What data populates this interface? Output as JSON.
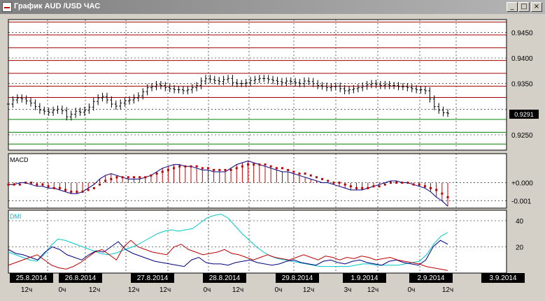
{
  "window": {
    "title": "График AUD /USD  ЧАС",
    "buttons": {
      "minimize": "_",
      "maximize": "□",
      "close": "×"
    }
  },
  "chart_data": [
    {
      "type": "candlestick",
      "ylim": [
        0.922,
        0.9475
      ],
      "yticks": [
        "0.9450",
        "0.9400",
        "0.9350",
        "0.9250"
      ],
      "current_price": "0.9291",
      "resistance_levels": [
        0.947,
        0.9445,
        0.942,
        0.9395,
        0.937,
        0.9345,
        0.9323
      ],
      "support_levels": [
        0.928,
        0.9255,
        0.9232
      ],
      "series": [
        {
          "name": "close",
          "values": [
            0.931,
            0.9318,
            0.9322,
            0.932,
            0.9316,
            0.9312,
            0.9305,
            0.9298,
            0.9296,
            0.9294,
            0.9298,
            0.93,
            0.9297,
            0.9285,
            0.929,
            0.9296,
            0.9294,
            0.9298,
            0.9304,
            0.9315,
            0.9322,
            0.9325,
            0.9318,
            0.931,
            0.9306,
            0.9312,
            0.9316,
            0.9318,
            0.9322,
            0.9326,
            0.9334,
            0.9342,
            0.9344,
            0.9348,
            0.9346,
            0.9342,
            0.934,
            0.9338,
            0.9338,
            0.9336,
            0.9338,
            0.9342,
            0.9346,
            0.9355,
            0.936,
            0.9358,
            0.9356,
            0.9354,
            0.9358,
            0.936,
            0.9352,
            0.935,
            0.935,
            0.9352,
            0.9356,
            0.9358,
            0.936,
            0.936,
            0.9358,
            0.9356,
            0.9354,
            0.9352,
            0.9355,
            0.9354,
            0.9352,
            0.935,
            0.9355,
            0.9354,
            0.935,
            0.9346,
            0.9345,
            0.9342,
            0.9344,
            0.9345,
            0.934,
            0.9336,
            0.9338,
            0.934,
            0.9342,
            0.9345,
            0.9348,
            0.935,
            0.9348,
            0.9346,
            0.9348,
            0.9346,
            0.9346,
            0.9344,
            0.9344,
            0.9342,
            0.934,
            0.9338,
            0.9338,
            0.9336,
            0.932,
            0.9305,
            0.9298,
            0.9293,
            0.9292
          ]
        }
      ]
    },
    {
      "type": "line",
      "title": "MACD",
      "ylim": [
        -0.0014,
        0.0016
      ],
      "yticks": [
        "+0.000",
        "-0.001"
      ],
      "series": [
        {
          "name": "MACD",
          "values": [
            -0.0001,
            -0.0001,
            0.0,
            0.0,
            -0.0001,
            -0.0002,
            -0.0002,
            -0.0003,
            -0.0003,
            -0.0004,
            -0.0005,
            -0.0006,
            -0.0006,
            -0.0005,
            -0.0003,
            -0.0001,
            0.0002,
            0.0004,
            0.0005,
            0.0004,
            0.0003,
            0.0002,
            0.0002,
            0.0002,
            0.0003,
            0.0004,
            0.0006,
            0.0008,
            0.0009,
            0.001,
            0.001,
            0.0009,
            0.0009,
            0.0008,
            0.0007,
            0.0007,
            0.0006,
            0.0006,
            0.0006,
            0.0008,
            0.001,
            0.0011,
            0.0012,
            0.0011,
            0.001,
            0.0009,
            0.0008,
            0.0007,
            0.0006,
            0.0006,
            0.0005,
            0.0004,
            0.0003,
            0.0002,
            0.0001,
            0.0,
            0.0,
            -0.0001,
            -0.0002,
            -0.0003,
            -0.0004,
            -0.0004,
            -0.0004,
            -0.0003,
            -0.0002,
            -0.0001,
            0.0,
            0.0001,
            0.0001,
            0.0,
            0.0,
            -0.0001,
            -0.0002,
            -0.0003,
            -0.0005,
            -0.0008,
            -0.001,
            -0.0013
          ]
        },
        {
          "name": "signal",
          "values": [
            -0.0001,
            -0.0001,
            -0.0001,
            0.0,
            0.0,
            -0.0001,
            -0.0001,
            -0.0002,
            -0.0003,
            -0.0003,
            -0.0004,
            -0.0005,
            -0.0005,
            -0.0005,
            -0.0004,
            -0.0003,
            -0.0001,
            0.0001,
            0.0002,
            0.0003,
            0.0003,
            0.0003,
            0.0003,
            0.0003,
            0.0003,
            0.0004,
            0.0005,
            0.0006,
            0.0007,
            0.0008,
            0.0009,
            0.0009,
            0.0009,
            0.0009,
            0.0008,
            0.0008,
            0.0007,
            0.0007,
            0.0007,
            0.0007,
            0.0008,
            0.0009,
            0.001,
            0.001,
            0.001,
            0.001,
            0.0009,
            0.0008,
            0.0008,
            0.0007,
            0.0006,
            0.0005,
            0.0005,
            0.0004,
            0.0003,
            0.0002,
            0.0001,
            0.0,
            0.0,
            -0.0001,
            -0.0002,
            -0.0003,
            -0.0003,
            -0.0003,
            -0.0002,
            -0.0002,
            -0.0001,
            0.0,
            0.0,
            0.0,
            0.0,
            -0.0001,
            -0.0001,
            -0.0002,
            -0.0003,
            -0.0004,
            -0.0006,
            -0.0008
          ]
        }
      ]
    },
    {
      "type": "line",
      "title": "DMI",
      "ylim": [
        0,
        48
      ],
      "yticks": [
        "40",
        "20"
      ],
      "series": [
        {
          "name": "ADX",
          "values": [
            16,
            14,
            12,
            10,
            9,
            14,
            21,
            26,
            25,
            23,
            21,
            19,
            17,
            15,
            14,
            15,
            17,
            19,
            21,
            24,
            27,
            30,
            32,
            33,
            32,
            33,
            34,
            38,
            42,
            44,
            45,
            42,
            36,
            30,
            25,
            20,
            16,
            13,
            11,
            10,
            9,
            8,
            7,
            6,
            5,
            5,
            5,
            5,
            5,
            6,
            7,
            7,
            6,
            6,
            6,
            6,
            7,
            8,
            9,
            14,
            22,
            28,
            31
          ]
        },
        {
          "name": "+DI",
          "values": [
            18,
            15,
            14,
            12,
            10,
            16,
            20,
            18,
            14,
            12,
            10,
            14,
            17,
            16,
            20,
            24,
            18,
            15,
            13,
            11,
            9,
            8,
            7,
            6,
            5,
            10,
            12,
            8,
            7,
            7,
            6,
            8,
            9,
            10,
            8,
            7,
            6,
            7,
            9,
            10,
            8,
            7,
            6,
            9,
            10,
            8,
            7,
            9,
            10,
            8,
            7,
            6,
            9,
            10,
            8,
            7,
            6,
            10,
            20,
            25,
            22
          ]
        },
        {
          "name": "-DI",
          "values": [
            6,
            8,
            10,
            12,
            14,
            10,
            6,
            4,
            3,
            5,
            8,
            12,
            16,
            18,
            14,
            10,
            20,
            25,
            20,
            18,
            16,
            15,
            14,
            20,
            22,
            18,
            16,
            14,
            15,
            16,
            18,
            15,
            14,
            12,
            10,
            12,
            14,
            12,
            11,
            10,
            12,
            14,
            12,
            10,
            13,
            12,
            10,
            12,
            11,
            13,
            12,
            10,
            11,
            12,
            10,
            9,
            8,
            7,
            5,
            4,
            3,
            2
          ]
        }
      ]
    }
  ],
  "time_axis": {
    "dates": [
      "25.8.2014",
      "26.8.2014",
      "27.8.2014",
      "28.8.2014",
      "29.8.2014",
      "1.9.2014",
      "2.9.2014",
      "3.9.2014"
    ],
    "hours": [
      "12ч",
      "0ч",
      "12ч",
      "12ч",
      "12ч",
      "0ч",
      "12ч",
      "0ч",
      "12ч",
      "3ч",
      "12ч",
      "0ч",
      "12ч"
    ]
  }
}
